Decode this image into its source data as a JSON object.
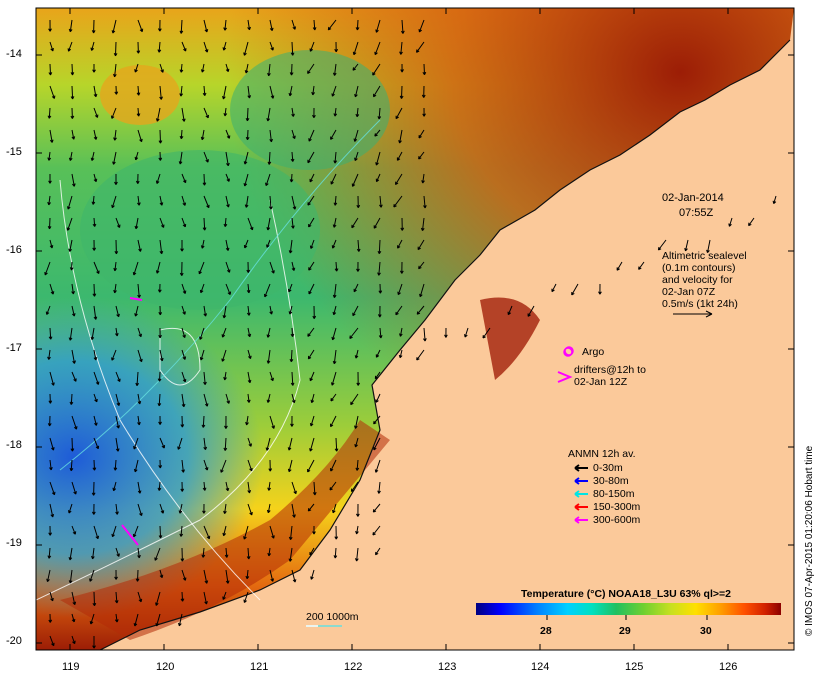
{
  "timestamp": {
    "date": "02-Jan-2014",
    "time": "07:55Z"
  },
  "sealevel_note": [
    "Altimetric sealevel",
    "(0.1m contours)",
    "and velocity for",
    "02-Jan 07Z",
    "0.5m/s (1kt 24h)"
  ],
  "argo_label": "Argo",
  "drifters_note": [
    "drifters@12h to",
    "02-Jan 12Z"
  ],
  "anmn": {
    "title": "ANMN 12h av.",
    "rows": [
      {
        "label": "0-30m",
        "color": "#000000"
      },
      {
        "label": "30-80m",
        "color": "#0000ff"
      },
      {
        "label": "80-150m",
        "color": "#00e5e5"
      },
      {
        "label": "150-300m",
        "color": "#ff0000"
      },
      {
        "label": "300-600m",
        "color": "#ff00ff"
      }
    ]
  },
  "colorbar": {
    "title": "Temperature (°C) NOAA18_L3U 63% ql>=2",
    "ticks": [
      "28",
      "29",
      "30"
    ],
    "stops": [
      "#00007f",
      "#0000ff",
      "#0080ff",
      "#00d0ff",
      "#00e0c0",
      "#20c060",
      "#70d030",
      "#c8e020",
      "#ffe000",
      "#ffa000",
      "#ff5000",
      "#d02000",
      "#8b0000"
    ]
  },
  "depth_legend": "200  1000m",
  "lat_ticks": [
    "-14",
    "-15",
    "-16",
    "-17",
    "-18",
    "-19",
    "-20"
  ],
  "lon_ticks": [
    "119",
    "120",
    "121",
    "122",
    "123",
    "124",
    "125",
    "126"
  ],
  "credit": "© IMOS 07-Apr-2015 01:20:06 Hobart time",
  "colors": {
    "land": "#fbc99a",
    "accent_magenta": "#ff00ff"
  }
}
